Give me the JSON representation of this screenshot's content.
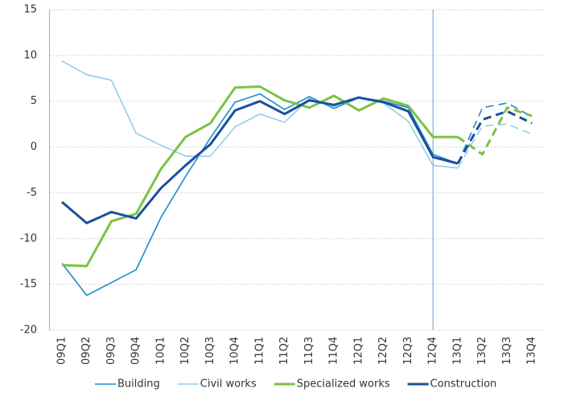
{
  "chart_data": {
    "type": "line",
    "categories": [
      "09Q1",
      "09Q2",
      "09Q3",
      "09Q4",
      "10Q1",
      "10Q2",
      "10Q3",
      "10Q4",
      "11Q1",
      "11Q2",
      "11Q3",
      "11Q4",
      "12Q1",
      "12Q2",
      "12Q3",
      "12Q4",
      "13Q1",
      "13Q2",
      "13Q3",
      "13Q4"
    ],
    "series": [
      {
        "name": "Building",
        "color": "#1a8ccc",
        "width": 1.6,
        "values": [
          -12.7,
          -16.2,
          -14.8,
          -13.4,
          -7.7,
          -3.2,
          1.0,
          4.9,
          5.8,
          4.1,
          5.5,
          4.2,
          5.4,
          5.0,
          4.3,
          -0.8,
          -1.8,
          4.3,
          4.8,
          3.3
        ]
      },
      {
        "name": "Civil works",
        "color": "#8ecfee",
        "width": 1.6,
        "values": [
          9.4,
          7.9,
          7.3,
          1.5,
          0.2,
          -1.0,
          -1.0,
          2.2,
          3.6,
          2.7,
          5.3,
          4.4,
          5.5,
          4.8,
          2.8,
          -2.0,
          -2.3,
          2.3,
          2.5,
          1.4
        ]
      },
      {
        "name": "Specialized works",
        "color": "#7dc242",
        "width": 3,
        "values": [
          -12.9,
          -13.0,
          -8.1,
          -7.3,
          -2.4,
          1.1,
          2.6,
          6.5,
          6.6,
          5.1,
          4.3,
          5.6,
          4.0,
          5.3,
          4.5,
          1.1,
          1.1,
          -0.8,
          4.3,
          3.4
        ]
      },
      {
        "name": "Construction",
        "color": "#1c4f9c",
        "width": 3,
        "values": [
          -6.0,
          -8.3,
          -7.1,
          -7.8,
          -4.5,
          -2.0,
          0.3,
          4.0,
          5.0,
          3.6,
          5.1,
          4.6,
          5.4,
          4.9,
          3.9,
          -1.1,
          -1.8,
          3.0,
          3.9,
          2.6
        ]
      }
    ],
    "ylim": [
      -20,
      15
    ],
    "yticks": [
      -20,
      -15,
      -10,
      -5,
      0,
      5,
      10,
      15
    ],
    "grid": true,
    "dashed_from": "13Q1",
    "vline": "12Q4",
    "legend": "bottom"
  }
}
